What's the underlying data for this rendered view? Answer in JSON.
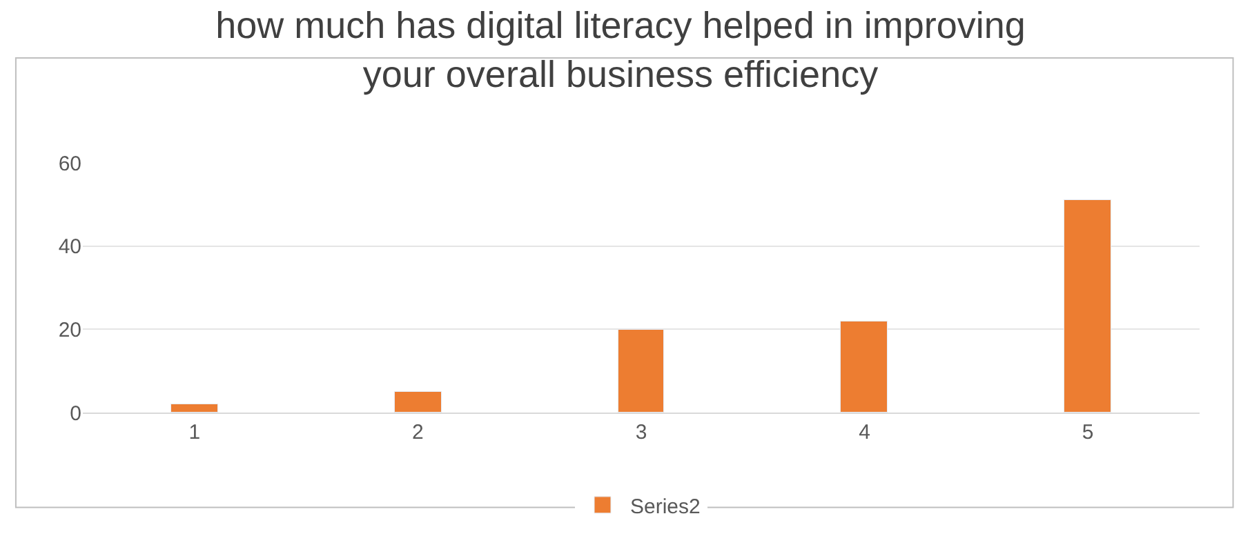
{
  "chart_data": {
    "type": "bar",
    "title": "how much has digital literacy helped in improving\nyour overall business efficiency",
    "categories": [
      "1",
      "2",
      "3",
      "4",
      "5"
    ],
    "series": [
      {
        "name": "Series2",
        "color": "#ed7d31",
        "values": [
          2,
          5,
          20,
          22,
          51
        ]
      }
    ],
    "ylim": [
      0,
      60
    ],
    "yticks": [
      0,
      20,
      40,
      60
    ],
    "grid": "y",
    "legend": "bottom"
  }
}
